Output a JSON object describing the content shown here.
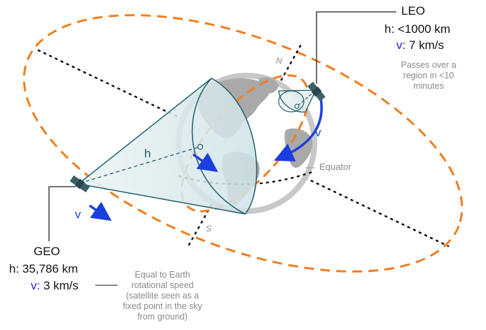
{
  "leo": {
    "name": "LEO",
    "height_prefix": "h: ",
    "height": "<1000 km",
    "speed_prefix": "v:",
    "speed": " 7 km/s",
    "note": "Passes over a region in <10 minutes",
    "arrow_label": "v"
  },
  "geo": {
    "name": "GEO",
    "height_prefix": "h: ",
    "height": "35,786 km",
    "speed_prefix": "v:",
    "speed": " 3 km/s",
    "note": "Equal to Earth rotational speed (satellite seen as a fixed point in the sky from ground)",
    "arrow_label": "v",
    "distance_label": "h"
  },
  "earth": {
    "equator_label": "Equator",
    "north_label": "N",
    "south_label": "S"
  },
  "colors": {
    "orbit": "#f07d1e",
    "arrow": "#1a3ee0",
    "earth_outline": "#c8c8c8",
    "earth_sea": "#ffffff",
    "earth_land": "#a9a9a9",
    "cone_fill": "#dbe9ec",
    "cone_stroke": "#1f5f6b",
    "satellite": "#3d5f68"
  }
}
